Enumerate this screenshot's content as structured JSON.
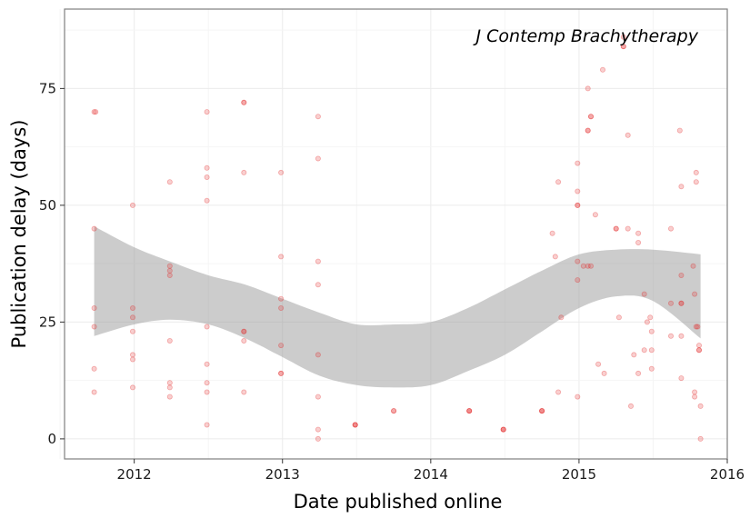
{
  "chart_data": {
    "type": "scatter",
    "title": "",
    "annotation": "J Contemp Brachytherapy",
    "xlabel": "Date published online",
    "ylabel": "Publication delay (days)",
    "xlim": [
      2011.53,
      2016.0
    ],
    "ylim": [
      -4.3,
      92
    ],
    "x_ticks": [
      2012,
      2013,
      2014,
      2015,
      2016
    ],
    "x_tick_labels": [
      "2012",
      "2013",
      "2014",
      "2015",
      "2016"
    ],
    "y_ticks": [
      0,
      25,
      50,
      75
    ],
    "y_tick_labels": [
      "0",
      "25",
      "50",
      "75"
    ],
    "grid": true,
    "legend": "none",
    "colors": {
      "points": "#e32626",
      "band": "#999999",
      "panel_border": "#7f7f7f",
      "grid_major": "#ebebeb",
      "grid_minor": "#f5f5f5"
    },
    "points": [
      [
        2011.73,
        70
      ],
      [
        2011.74,
        70
      ],
      [
        2011.73,
        45
      ],
      [
        2011.73,
        28
      ],
      [
        2011.73,
        24
      ],
      [
        2011.73,
        15
      ],
      [
        2011.73,
        10
      ],
      [
        2011.99,
        50
      ],
      [
        2011.99,
        28
      ],
      [
        2011.99,
        26
      ],
      [
        2011.99,
        23
      ],
      [
        2011.99,
        18
      ],
      [
        2011.99,
        17
      ],
      [
        2011.99,
        11
      ],
      [
        2012.24,
        55
      ],
      [
        2012.24,
        37
      ],
      [
        2012.24,
        36
      ],
      [
        2012.24,
        35
      ],
      [
        2012.24,
        21
      ],
      [
        2012.24,
        12
      ],
      [
        2012.24,
        11
      ],
      [
        2012.24,
        9
      ],
      [
        2012.49,
        70
      ],
      [
        2012.49,
        58
      ],
      [
        2012.49,
        56
      ],
      [
        2012.49,
        51
      ],
      [
        2012.49,
        24
      ],
      [
        2012.49,
        16
      ],
      [
        2012.49,
        12
      ],
      [
        2012.49,
        10
      ],
      [
        2012.49,
        3
      ],
      [
        2012.74,
        72
      ],
      [
        2012.74,
        72
      ],
      [
        2012.74,
        57
      ],
      [
        2012.74,
        23
      ],
      [
        2012.74,
        23
      ],
      [
        2012.74,
        21
      ],
      [
        2012.74,
        10
      ],
      [
        2012.99,
        57
      ],
      [
        2012.99,
        39
      ],
      [
        2012.99,
        30
      ],
      [
        2012.99,
        28
      ],
      [
        2012.99,
        20
      ],
      [
        2012.99,
        14
      ],
      [
        2012.99,
        14
      ],
      [
        2013.24,
        69
      ],
      [
        2013.24,
        60
      ],
      [
        2013.24,
        38
      ],
      [
        2013.24,
        33
      ],
      [
        2013.24,
        18
      ],
      [
        2013.24,
        9
      ],
      [
        2013.24,
        2
      ],
      [
        2013.24,
        0
      ],
      [
        2013.49,
        3
      ],
      [
        2013.49,
        3
      ],
      [
        2013.49,
        3
      ],
      [
        2013.75,
        6
      ],
      [
        2013.75,
        6
      ],
      [
        2014.26,
        6
      ],
      [
        2014.26,
        6
      ],
      [
        2014.26,
        6
      ],
      [
        2014.49,
        2
      ],
      [
        2014.49,
        2
      ],
      [
        2014.49,
        2
      ],
      [
        2014.75,
        6
      ],
      [
        2014.75,
        6
      ],
      [
        2014.75,
        6
      ],
      [
        2014.82,
        44
      ],
      [
        2014.84,
        39
      ],
      [
        2014.86,
        55
      ],
      [
        2014.86,
        10
      ],
      [
        2014.88,
        26
      ],
      [
        2014.99,
        59
      ],
      [
        2014.99,
        53
      ],
      [
        2014.99,
        50
      ],
      [
        2014.99,
        50
      ],
      [
        2014.99,
        38
      ],
      [
        2014.99,
        34
      ],
      [
        2014.99,
        9
      ],
      [
        2015.03,
        37
      ],
      [
        2015.06,
        75
      ],
      [
        2015.06,
        66
      ],
      [
        2015.06,
        66
      ],
      [
        2015.06,
        37
      ],
      [
        2015.08,
        69
      ],
      [
        2015.08,
        69
      ],
      [
        2015.08,
        37
      ],
      [
        2015.11,
        48
      ],
      [
        2015.13,
        16
      ],
      [
        2015.16,
        79
      ],
      [
        2015.17,
        14
      ],
      [
        2015.25,
        45
      ],
      [
        2015.25,
        45
      ],
      [
        2015.27,
        26
      ],
      [
        2015.3,
        84
      ],
      [
        2015.3,
        84
      ],
      [
        2015.3,
        86
      ],
      [
        2015.33,
        65
      ],
      [
        2015.33,
        45
      ],
      [
        2015.35,
        7
      ],
      [
        2015.37,
        18
      ],
      [
        2015.4,
        44
      ],
      [
        2015.4,
        42
      ],
      [
        2015.4,
        14
      ],
      [
        2015.44,
        31
      ],
      [
        2015.44,
        19
      ],
      [
        2015.46,
        25
      ],
      [
        2015.48,
        26
      ],
      [
        2015.49,
        23
      ],
      [
        2015.49,
        19
      ],
      [
        2015.49,
        15
      ],
      [
        2015.62,
        45
      ],
      [
        2015.62,
        29
      ],
      [
        2015.62,
        22
      ],
      [
        2015.68,
        66
      ],
      [
        2015.69,
        54
      ],
      [
        2015.69,
        35
      ],
      [
        2015.69,
        29
      ],
      [
        2015.69,
        29
      ],
      [
        2015.69,
        22
      ],
      [
        2015.69,
        13
      ],
      [
        2015.77,
        37
      ],
      [
        2015.78,
        31
      ],
      [
        2015.78,
        10
      ],
      [
        2015.78,
        9
      ],
      [
        2015.79,
        57
      ],
      [
        2015.79,
        55
      ],
      [
        2015.79,
        24
      ],
      [
        2015.8,
        24
      ],
      [
        2015.81,
        20
      ],
      [
        2015.81,
        19
      ],
      [
        2015.81,
        19
      ],
      [
        2015.82,
        7
      ],
      [
        2015.82,
        0
      ]
    ],
    "smooth_band": {
      "x": [
        2011.73,
        2012.0,
        2012.24,
        2012.5,
        2012.75,
        2013.0,
        2013.25,
        2013.5,
        2013.75,
        2014.0,
        2014.25,
        2014.5,
        2014.75,
        2015.0,
        2015.25,
        2015.5,
        2015.82
      ],
      "upper": [
        45.5,
        41,
        38,
        35,
        33,
        30,
        27,
        24.5,
        24.5,
        25,
        28,
        32,
        36,
        39.5,
        40.5,
        40.5,
        39.5
      ],
      "lower": [
        22,
        24.5,
        25.5,
        24.5,
        21.5,
        17.5,
        13.5,
        11.5,
        11,
        11.5,
        14.5,
        18,
        23,
        28,
        30.5,
        29.5,
        21.5
      ]
    }
  }
}
